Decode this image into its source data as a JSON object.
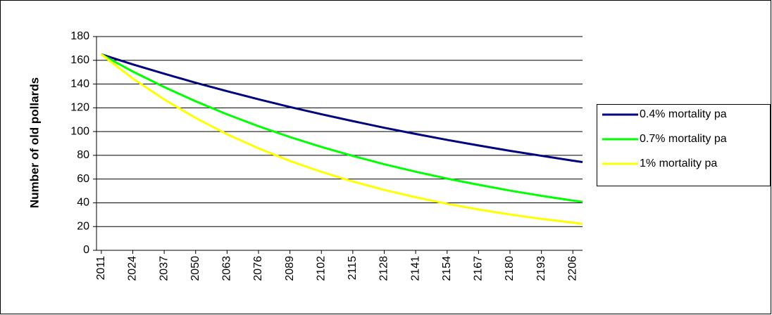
{
  "chart_data": {
    "type": "line",
    "y_label": "Number of old pollards",
    "x": [
      2011,
      2024,
      2037,
      2050,
      2063,
      2076,
      2089,
      2102,
      2115,
      2128,
      2141,
      2154,
      2167,
      2180,
      2193,
      2206,
      2210
    ],
    "series": [
      {
        "name": "0.4% mortality pa",
        "color": "#000080",
        "values": [
          165,
          156.6,
          148.7,
          141.1,
          134.0,
          127.2,
          120.7,
          114.6,
          108.8,
          103.2,
          98.0,
          93.0,
          88.3,
          83.8,
          79.6,
          75.5,
          74.3
        ]
      },
      {
        "name": "0.7% mortality pa",
        "color": "#00ff00",
        "values": [
          165,
          150.6,
          137.5,
          125.5,
          114.5,
          104.5,
          95.4,
          87.1,
          79.5,
          72.5,
          66.2,
          60.4,
          55.2,
          50.3,
          45.9,
          41.9,
          40.8
        ]
      },
      {
        "name": "1% mortality pa",
        "color": "#ffff00",
        "values": [
          165,
          144.8,
          127.1,
          111.5,
          97.8,
          85.9,
          75.3,
          66.1,
          58.0,
          50.9,
          44.7,
          39.2,
          34.4,
          30.2,
          26.5,
          23.3,
          22.3
        ]
      }
    ],
    "xlim": [
      2009,
      2210
    ],
    "xticks": [
      2011,
      2024,
      2037,
      2050,
      2063,
      2076,
      2089,
      2102,
      2115,
      2128,
      2141,
      2154,
      2167,
      2180,
      2193,
      2206
    ],
    "ylim": [
      0,
      180
    ],
    "yticks": [
      0,
      20,
      40,
      60,
      80,
      100,
      120,
      140,
      160,
      180
    ],
    "grid": true,
    "legend": "right"
  }
}
